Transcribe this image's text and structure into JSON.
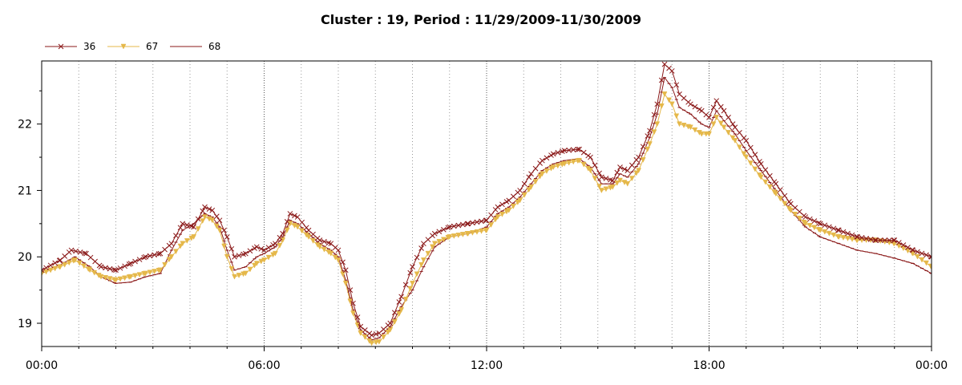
{
  "chart_data": {
    "type": "line",
    "title": "Cluster : 19, Period : 11/29/2009-11/30/2009",
    "xlabel": "",
    "ylabel": "",
    "x_unit": "hour",
    "xlim": [
      0,
      24
    ],
    "ylim": [
      18.65,
      22.95
    ],
    "x_ticks": [
      {
        "value": 0,
        "label": "00:00"
      },
      {
        "value": 6,
        "label": "06:00"
      },
      {
        "value": 12,
        "label": "12:00"
      },
      {
        "value": 18,
        "label": "18:00"
      },
      {
        "value": 24,
        "label": "00:00"
      }
    ],
    "y_ticks": [
      19,
      20,
      21,
      22
    ],
    "grid": true,
    "legend_position": "top-left",
    "series": [
      {
        "name": "36",
        "color": "#8b1a1a",
        "marker": "x",
        "points": [
          [
            0,
            19.8
          ],
          [
            0.5,
            19.95
          ],
          [
            0.8,
            20.1
          ],
          [
            1.2,
            20.05
          ],
          [
            1.6,
            19.85
          ],
          [
            2.0,
            19.8
          ],
          [
            2.4,
            19.9
          ],
          [
            2.8,
            20.0
          ],
          [
            3.2,
            20.05
          ],
          [
            3.5,
            20.2
          ],
          [
            3.8,
            20.5
          ],
          [
            4.1,
            20.45
          ],
          [
            4.4,
            20.75
          ],
          [
            4.6,
            20.7
          ],
          [
            4.8,
            20.55
          ],
          [
            5.0,
            20.3
          ],
          [
            5.2,
            20.0
          ],
          [
            5.5,
            20.05
          ],
          [
            5.8,
            20.15
          ],
          [
            6.0,
            20.1
          ],
          [
            6.3,
            20.2
          ],
          [
            6.5,
            20.35
          ],
          [
            6.7,
            20.65
          ],
          [
            6.9,
            20.6
          ],
          [
            7.2,
            20.4
          ],
          [
            7.5,
            20.25
          ],
          [
            7.8,
            20.2
          ],
          [
            8.0,
            20.1
          ],
          [
            8.2,
            19.8
          ],
          [
            8.4,
            19.3
          ],
          [
            8.6,
            18.95
          ],
          [
            8.9,
            18.82
          ],
          [
            9.1,
            18.85
          ],
          [
            9.4,
            19.0
          ],
          [
            9.7,
            19.4
          ],
          [
            10.0,
            19.85
          ],
          [
            10.3,
            20.2
          ],
          [
            10.6,
            20.35
          ],
          [
            11.0,
            20.45
          ],
          [
            11.5,
            20.5
          ],
          [
            12.0,
            20.55
          ],
          [
            12.3,
            20.75
          ],
          [
            12.6,
            20.85
          ],
          [
            12.9,
            21.0
          ],
          [
            13.2,
            21.25
          ],
          [
            13.5,
            21.45
          ],
          [
            13.8,
            21.55
          ],
          [
            14.1,
            21.6
          ],
          [
            14.5,
            21.62
          ],
          [
            14.8,
            21.5
          ],
          [
            15.1,
            21.2
          ],
          [
            15.4,
            21.15
          ],
          [
            15.6,
            21.35
          ],
          [
            15.8,
            21.3
          ],
          [
            16.1,
            21.5
          ],
          [
            16.4,
            21.9
          ],
          [
            16.6,
            22.3
          ],
          [
            16.8,
            22.9
          ],
          [
            17.0,
            22.8
          ],
          [
            17.2,
            22.45
          ],
          [
            17.5,
            22.3
          ],
          [
            17.8,
            22.2
          ],
          [
            18.0,
            22.1
          ],
          [
            18.2,
            22.35
          ],
          [
            18.4,
            22.2
          ],
          [
            18.7,
            21.95
          ],
          [
            19.0,
            21.75
          ],
          [
            19.4,
            21.4
          ],
          [
            19.8,
            21.1
          ],
          [
            20.2,
            20.8
          ],
          [
            20.6,
            20.6
          ],
          [
            21.0,
            20.5
          ],
          [
            21.5,
            20.4
          ],
          [
            22.0,
            20.3
          ],
          [
            22.5,
            20.25
          ],
          [
            23.0,
            20.25
          ],
          [
            23.5,
            20.1
          ],
          [
            24,
            20.0
          ]
        ]
      },
      {
        "name": "67",
        "color": "#e5b84a",
        "marker": "triangle-down",
        "points": [
          [
            0,
            19.75
          ],
          [
            0.5,
            19.85
          ],
          [
            0.9,
            19.95
          ],
          [
            1.3,
            19.8
          ],
          [
            1.6,
            19.7
          ],
          [
            2.0,
            19.65
          ],
          [
            2.4,
            19.7
          ],
          [
            2.8,
            19.75
          ],
          [
            3.2,
            19.8
          ],
          [
            3.5,
            20.0
          ],
          [
            3.8,
            20.2
          ],
          [
            4.1,
            20.3
          ],
          [
            4.4,
            20.6
          ],
          [
            4.6,
            20.55
          ],
          [
            4.8,
            20.4
          ],
          [
            5.0,
            20.0
          ],
          [
            5.2,
            19.7
          ],
          [
            5.5,
            19.75
          ],
          [
            5.8,
            19.9
          ],
          [
            6.0,
            19.95
          ],
          [
            6.3,
            20.05
          ],
          [
            6.5,
            20.25
          ],
          [
            6.7,
            20.5
          ],
          [
            6.9,
            20.45
          ],
          [
            7.2,
            20.3
          ],
          [
            7.5,
            20.15
          ],
          [
            7.8,
            20.05
          ],
          [
            8.0,
            19.95
          ],
          [
            8.2,
            19.6
          ],
          [
            8.4,
            19.15
          ],
          [
            8.6,
            18.85
          ],
          [
            8.9,
            18.7
          ],
          [
            9.1,
            18.72
          ],
          [
            9.4,
            18.9
          ],
          [
            9.7,
            19.2
          ],
          [
            10.0,
            19.6
          ],
          [
            10.3,
            19.95
          ],
          [
            10.6,
            20.2
          ],
          [
            11.0,
            20.3
          ],
          [
            11.5,
            20.35
          ],
          [
            12.0,
            20.4
          ],
          [
            12.3,
            20.6
          ],
          [
            12.6,
            20.7
          ],
          [
            12.9,
            20.85
          ],
          [
            13.2,
            21.05
          ],
          [
            13.5,
            21.25
          ],
          [
            13.8,
            21.35
          ],
          [
            14.1,
            21.4
          ],
          [
            14.5,
            21.45
          ],
          [
            14.8,
            21.3
          ],
          [
            15.1,
            21.0
          ],
          [
            15.4,
            21.05
          ],
          [
            15.6,
            21.15
          ],
          [
            15.8,
            21.1
          ],
          [
            16.1,
            21.3
          ],
          [
            16.4,
            21.7
          ],
          [
            16.6,
            22.0
          ],
          [
            16.8,
            22.45
          ],
          [
            17.0,
            22.3
          ],
          [
            17.2,
            22.0
          ],
          [
            17.5,
            21.95
          ],
          [
            17.8,
            21.85
          ],
          [
            18.0,
            21.85
          ],
          [
            18.2,
            22.1
          ],
          [
            18.4,
            21.95
          ],
          [
            18.7,
            21.75
          ],
          [
            19.0,
            21.5
          ],
          [
            19.4,
            21.2
          ],
          [
            19.8,
            20.95
          ],
          [
            20.2,
            20.7
          ],
          [
            20.6,
            20.5
          ],
          [
            21.0,
            20.4
          ],
          [
            21.5,
            20.3
          ],
          [
            22.0,
            20.25
          ],
          [
            22.5,
            20.25
          ],
          [
            23.0,
            20.2
          ],
          [
            23.5,
            20.05
          ],
          [
            24,
            19.85
          ]
        ]
      },
      {
        "name": "68",
        "color": "#8b1a1a",
        "marker": "none",
        "points": [
          [
            0,
            19.78
          ],
          [
            0.5,
            19.88
          ],
          [
            0.9,
            20.0
          ],
          [
            1.3,
            19.85
          ],
          [
            1.6,
            19.7
          ],
          [
            2.0,
            19.6
          ],
          [
            2.4,
            19.62
          ],
          [
            2.8,
            19.7
          ],
          [
            3.2,
            19.75
          ],
          [
            3.5,
            20.1
          ],
          [
            3.8,
            20.4
          ],
          [
            4.1,
            20.5
          ],
          [
            4.4,
            20.65
          ],
          [
            4.6,
            20.6
          ],
          [
            4.8,
            20.45
          ],
          [
            5.0,
            20.1
          ],
          [
            5.2,
            19.8
          ],
          [
            5.5,
            19.85
          ],
          [
            5.8,
            20.0
          ],
          [
            6.0,
            20.05
          ],
          [
            6.3,
            20.15
          ],
          [
            6.5,
            20.3
          ],
          [
            6.7,
            20.55
          ],
          [
            6.9,
            20.5
          ],
          [
            7.2,
            20.35
          ],
          [
            7.5,
            20.2
          ],
          [
            7.8,
            20.1
          ],
          [
            8.0,
            20.0
          ],
          [
            8.2,
            19.65
          ],
          [
            8.4,
            19.2
          ],
          [
            8.6,
            18.9
          ],
          [
            8.9,
            18.75
          ],
          [
            9.1,
            18.78
          ],
          [
            9.4,
            18.95
          ],
          [
            9.7,
            19.25
          ],
          [
            10.0,
            19.5
          ],
          [
            10.3,
            19.85
          ],
          [
            10.6,
            20.15
          ],
          [
            11.0,
            20.3
          ],
          [
            11.5,
            20.35
          ],
          [
            12.0,
            20.45
          ],
          [
            12.3,
            20.65
          ],
          [
            12.6,
            20.75
          ],
          [
            12.9,
            20.9
          ],
          [
            13.2,
            21.1
          ],
          [
            13.5,
            21.3
          ],
          [
            13.8,
            21.4
          ],
          [
            14.1,
            21.45
          ],
          [
            14.5,
            21.48
          ],
          [
            14.8,
            21.35
          ],
          [
            15.1,
            21.1
          ],
          [
            15.4,
            21.1
          ],
          [
            15.6,
            21.25
          ],
          [
            15.8,
            21.2
          ],
          [
            16.1,
            21.4
          ],
          [
            16.4,
            21.8
          ],
          [
            16.6,
            22.15
          ],
          [
            16.8,
            22.7
          ],
          [
            17.0,
            22.55
          ],
          [
            17.2,
            22.25
          ],
          [
            17.5,
            22.15
          ],
          [
            17.8,
            22.0
          ],
          [
            18.0,
            21.95
          ],
          [
            18.2,
            22.2
          ],
          [
            18.4,
            22.05
          ],
          [
            18.7,
            21.85
          ],
          [
            19.0,
            21.6
          ],
          [
            19.4,
            21.3
          ],
          [
            19.8,
            21.0
          ],
          [
            20.2,
            20.7
          ],
          [
            20.6,
            20.45
          ],
          [
            21.0,
            20.3
          ],
          [
            21.5,
            20.2
          ],
          [
            22.0,
            20.1
          ],
          [
            22.5,
            20.05
          ],
          [
            23.0,
            19.98
          ],
          [
            23.5,
            19.9
          ],
          [
            24,
            19.75
          ]
        ]
      }
    ]
  }
}
